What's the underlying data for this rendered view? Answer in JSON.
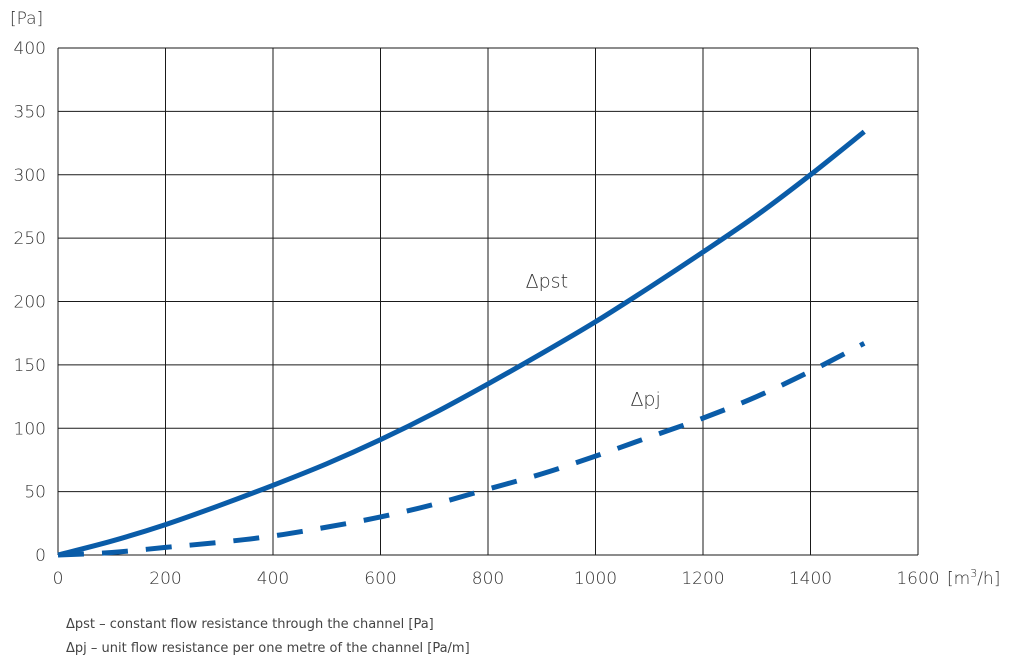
{
  "chart_data": {
    "type": "line",
    "title": "",
    "ylabel": "[Pa]",
    "xlabel_main": "[m",
    "xlabel_sup": "3",
    "xlabel_tail": "/h]",
    "xlim": [
      0,
      1600
    ],
    "ylim": [
      0,
      400
    ],
    "xticks": [
      0,
      200,
      400,
      600,
      800,
      1000,
      1200,
      1400,
      1600
    ],
    "yticks": [
      0,
      50,
      100,
      150,
      200,
      250,
      300,
      350,
      400
    ],
    "grid": true,
    "series": [
      {
        "name": "Δpst",
        "style": "solid",
        "color": "#0a5ca8",
        "x": [
          0,
          100,
          200,
          300,
          400,
          500,
          600,
          700,
          800,
          900,
          1000,
          1100,
          1200,
          1300,
          1400,
          1500
        ],
        "y": [
          0,
          11,
          24,
          39,
          55,
          72,
          91,
          112,
          135,
          159,
          184,
          211,
          239,
          268,
          300,
          334
        ]
      },
      {
        "name": "Δpj",
        "style": "dashed",
        "color": "#0a5ca8",
        "x": [
          0,
          100,
          200,
          300,
          400,
          500,
          600,
          700,
          800,
          900,
          1000,
          1100,
          1200,
          1300,
          1400,
          1500
        ],
        "y": [
          0,
          2,
          6,
          10,
          15,
          22,
          30,
          40,
          52,
          64,
          78,
          93,
          108,
          125,
          145,
          167
        ]
      }
    ],
    "annotations": [
      {
        "text": "Δpst",
        "x": 870,
        "y": 211
      },
      {
        "text": "Δpj",
        "x": 1065,
        "y": 118
      }
    ]
  },
  "legend_notes": [
    "Δpst – constant flow resistance through the channel [Pa]",
    "Δpj – unit flow resistance per one metre of the channel [Pa/m]"
  ]
}
